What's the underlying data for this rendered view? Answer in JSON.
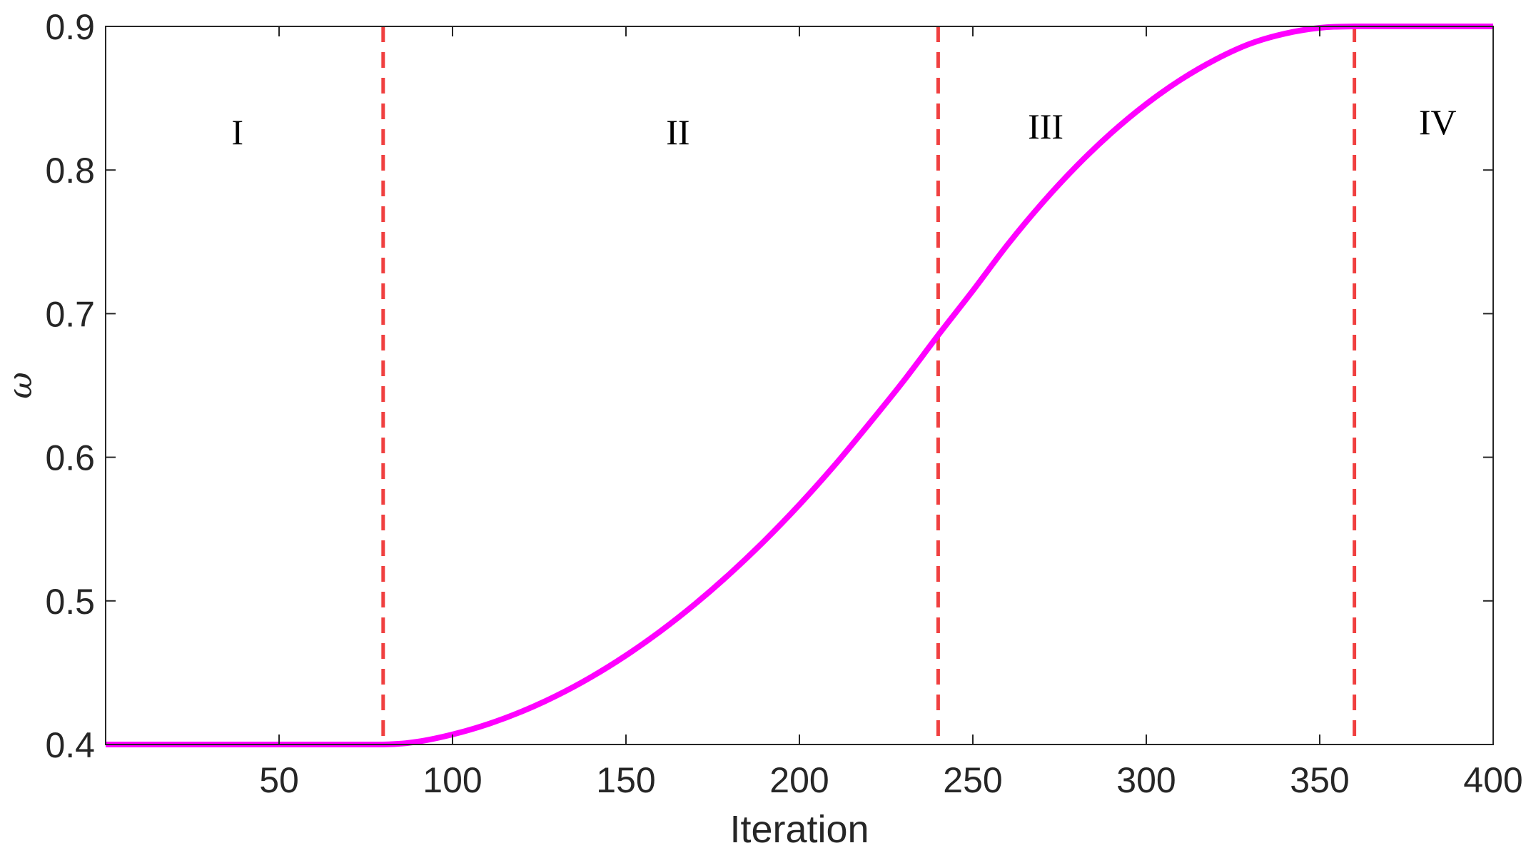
{
  "chart_data": {
    "type": "line",
    "title": "",
    "xlabel": "Iteration",
    "ylabel": "ω",
    "xlim": [
      0,
      400
    ],
    "ylim": [
      0.4,
      0.9
    ],
    "xticks": [
      50,
      100,
      150,
      200,
      250,
      300,
      350,
      400
    ],
    "xtick_labels": [
      "50",
      "100",
      "150",
      "200",
      "250",
      "300",
      "350",
      "400"
    ],
    "yticks": [
      0.4,
      0.5,
      0.6,
      0.7,
      0.8,
      0.9
    ],
    "ytick_labels": [
      "0.4",
      "0.5",
      "0.6",
      "0.7",
      "0.8",
      "0.9"
    ],
    "grid": false,
    "series": [
      {
        "color": "#ff00ff",
        "x": [
          0,
          20,
          40,
          60,
          80,
          90,
          100,
          110,
          120,
          130,
          140,
          150,
          160,
          170,
          180,
          190,
          200,
          210,
          220,
          230,
          240,
          250,
          260,
          270,
          280,
          290,
          300,
          310,
          320,
          330,
          340,
          350,
          360,
          380,
          400
        ],
        "y": [
          0.4,
          0.4,
          0.4,
          0.4,
          0.4,
          0.402,
          0.407,
          0.414,
          0.423,
          0.434,
          0.447,
          0.462,
          0.479,
          0.498,
          0.519,
          0.542,
          0.567,
          0.594,
          0.623,
          0.653,
          0.685,
          0.716,
          0.748,
          0.777,
          0.803,
          0.826,
          0.846,
          0.863,
          0.877,
          0.888,
          0.895,
          0.899,
          0.9,
          0.9,
          0.9
        ]
      }
    ],
    "vlines": {
      "color": "#f04040",
      "style": "dashed",
      "x": [
        80,
        240,
        360
      ]
    },
    "regions": [
      {
        "label": "I",
        "x": 38,
        "y": 0.818
      },
      {
        "label": "II",
        "x": 165,
        "y": 0.818
      },
      {
        "label": "III",
        "x": 271,
        "y": 0.822
      },
      {
        "label": "IV",
        "x": 384,
        "y": 0.825
      }
    ]
  }
}
